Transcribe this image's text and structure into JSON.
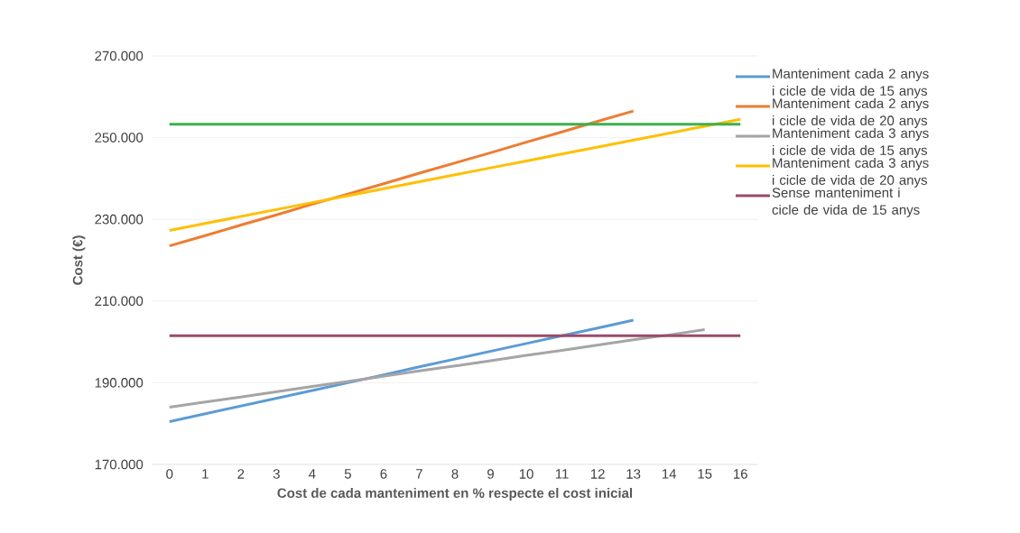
{
  "chart_data": {
    "type": "line",
    "xlabel": "Cost de cada manteniment en % respecte el cost inicial",
    "ylabel": "Cost (€)",
    "categories": [
      "0",
      "1",
      "2",
      "3",
      "4",
      "5",
      "6",
      "7",
      "8",
      "9",
      "10",
      "11",
      "12",
      "13",
      "14",
      "15",
      "16"
    ],
    "series": [
      {
        "name": "Manteniment cada 2 anys i cicle de vida de 15 anys",
        "color": "#5b9bd5",
        "values": [
          180500,
          182400,
          184300,
          186200,
          188100,
          190000,
          191900,
          193900,
          195800,
          197700,
          199600,
          201500,
          203400,
          205300,
          null,
          null,
          null
        ]
      },
      {
        "name": "Manteniment cada 2 anys i cicle de vida de 20 anys",
        "color": "#ed7d31",
        "values": [
          223500,
          226000,
          228600,
          231100,
          233700,
          236200,
          238700,
          241300,
          243800,
          246300,
          248900,
          251400,
          254000,
          256500,
          null,
          null,
          null
        ]
      },
      {
        "name": "Manteniment cada 3 anys i cicle de vida de 15 anys",
        "color": "#a5a5a5",
        "values": [
          184000,
          185300,
          186500,
          187800,
          189100,
          190300,
          191600,
          192900,
          194100,
          195400,
          196700,
          197900,
          199200,
          200500,
          201700,
          203000,
          null
        ]
      },
      {
        "name": "Manteniment cada 3 anys i cicle de vida de 20 anys",
        "color": "#ffc000",
        "values": [
          227300,
          229000,
          230700,
          232400,
          234100,
          235800,
          237500,
          239200,
          240900,
          242600,
          244300,
          246000,
          247700,
          249400,
          251100,
          252800,
          254500
        ]
      },
      {
        "name": "Sense manteniment i cicle de vida de 15 anys",
        "color": "#9b4a6b",
        "values": [
          201500,
          201500,
          201500,
          201500,
          201500,
          201500,
          201500,
          201500,
          201500,
          201500,
          201500,
          201500,
          201500,
          201500,
          201500,
          201500,
          201500
        ]
      },
      {
        "color": "#3cb04b",
        "values": [
          253300,
          253300,
          253300,
          253300,
          253300,
          253300,
          253300,
          253300,
          253300,
          253300,
          253300,
          253300,
          253300,
          253300,
          253300,
          253300,
          253300
        ]
      }
    ],
    "ylim": [
      170000,
      270000
    ],
    "yticks": [
      {
        "value": 170000,
        "label": "170.000"
      },
      {
        "value": 190000,
        "label": "190.000"
      },
      {
        "value": 210000,
        "label": "210.000"
      },
      {
        "value": 230000,
        "label": "230.000"
      },
      {
        "value": 250000,
        "label": "250.000"
      },
      {
        "value": 270000,
        "label": "270.000"
      }
    ],
    "grid": "y",
    "legend": "right",
    "marker": "none",
    "line_style": "solid"
  }
}
